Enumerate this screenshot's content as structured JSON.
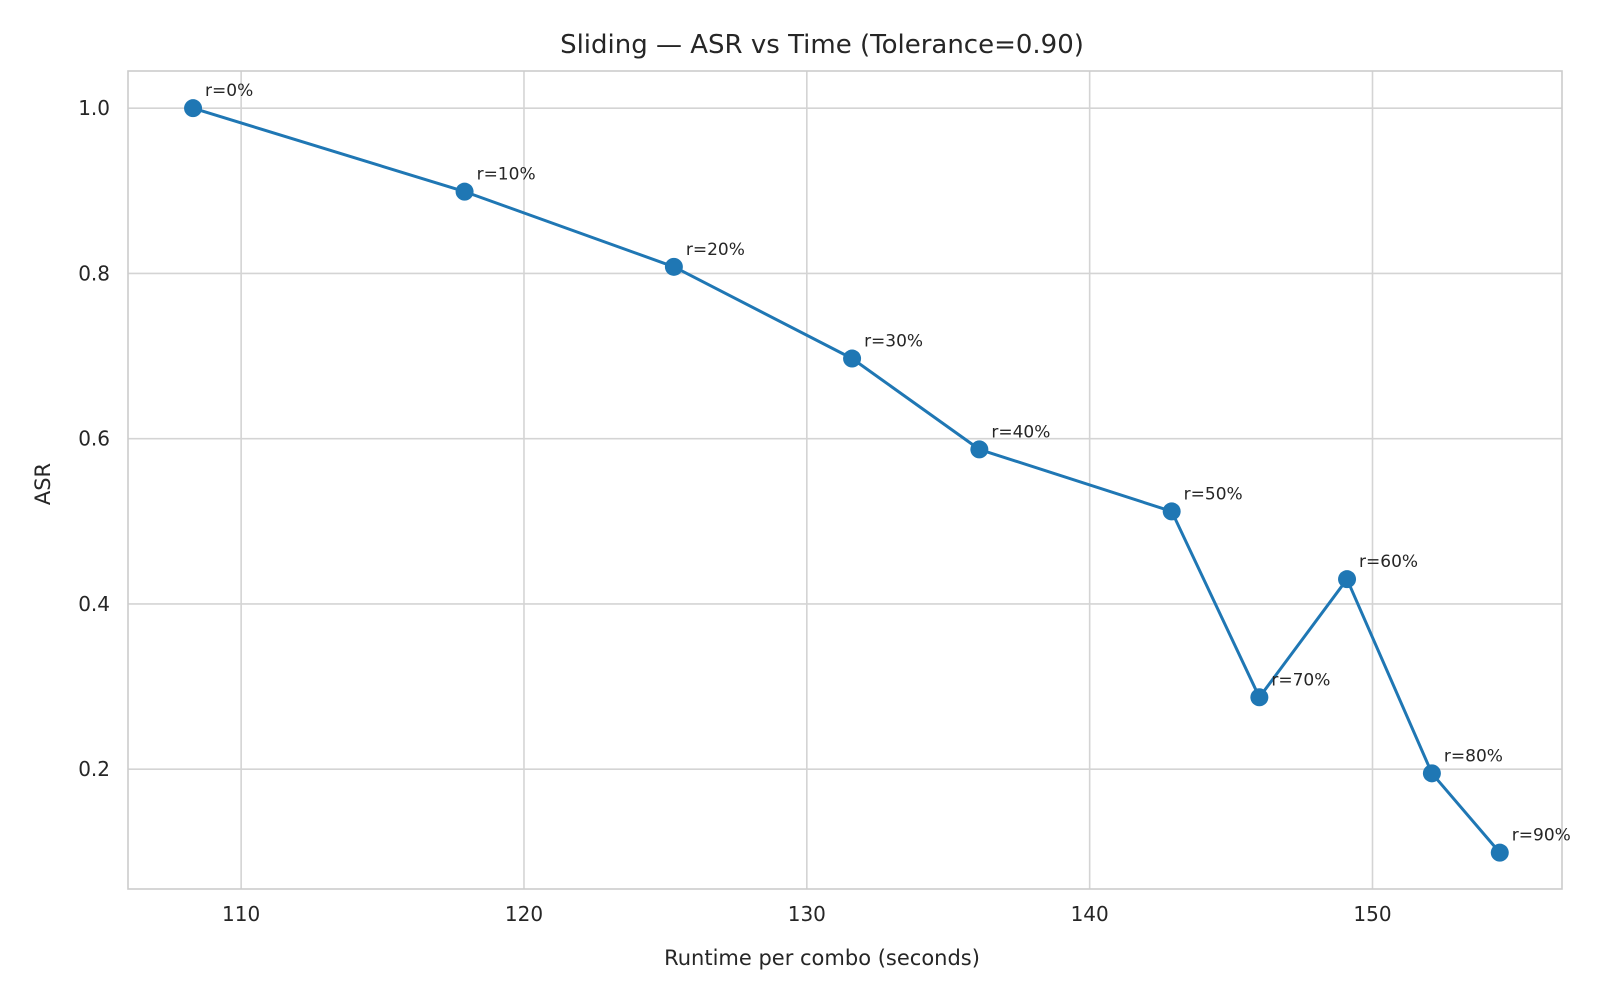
{
  "chart_data": {
    "type": "line",
    "title": "Sliding — ASR vs Time (Tolerance=0.90)",
    "xlabel": "Runtime per combo (seconds)",
    "ylabel": "ASR",
    "xlim": [
      106,
      156.7
    ],
    "ylim": [
      0.055,
      1.045
    ],
    "xticks": [
      110,
      120,
      130,
      140,
      150
    ],
    "xtick_labels": [
      "110",
      "120",
      "130",
      "140",
      "150"
    ],
    "yticks": [
      0.2,
      0.4,
      0.6,
      0.8,
      1.0
    ],
    "ytick_labels": [
      "0.2",
      "0.4",
      "0.6",
      "0.8",
      "1.0"
    ],
    "grid": true,
    "series": [
      {
        "color": "#1f77b4",
        "points": [
          {
            "x": 108.3,
            "y": 1.0,
            "label": "r=0%"
          },
          {
            "x": 117.9,
            "y": 0.899,
            "label": "r=10%"
          },
          {
            "x": 125.3,
            "y": 0.808,
            "label": "r=20%"
          },
          {
            "x": 131.6,
            "y": 0.697,
            "label": "r=30%"
          },
          {
            "x": 136.1,
            "y": 0.587,
            "label": "r=40%"
          },
          {
            "x": 142.9,
            "y": 0.512,
            "label": "r=50%"
          },
          {
            "x": 146.0,
            "y": 0.287,
            "label": "r=70%"
          },
          {
            "x": 149.1,
            "y": 0.43,
            "label": "r=60%"
          },
          {
            "x": 152.1,
            "y": 0.195,
            "label": "r=80%"
          },
          {
            "x": 154.5,
            "y": 0.099,
            "label": "r=90%"
          }
        ]
      }
    ]
  }
}
